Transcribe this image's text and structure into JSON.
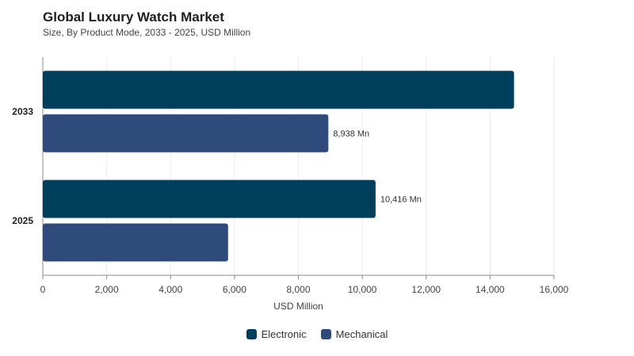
{
  "title": "Global Luxury Watch Market",
  "subtitle": "Size, By Product Mode, 2033 - 2025, USD Million",
  "colors": {
    "electronic": "#003f5c",
    "mechanical": "#2f4b7c"
  },
  "chart_data": {
    "type": "bar",
    "orientation": "horizontal",
    "title": "Global Luxury Watch Market",
    "subtitle": "Size, By Product Mode, 2033 - 2025, USD Million",
    "categories": [
      "2033",
      "2025"
    ],
    "series": [
      {
        "name": "Electronic",
        "values": [
          14750,
          10416
        ],
        "labels": [
          "",
          "10,416 Mn"
        ]
      },
      {
        "name": "Mechanical",
        "values": [
          8938,
          5800
        ],
        "labels": [
          "8,938 Mn",
          ""
        ]
      }
    ],
    "xlabel": "USD Million",
    "ylabel": "",
    "xlim": [
      0,
      16000
    ],
    "xticks": [
      "0",
      "2,000",
      "4,000",
      "6,000",
      "8,000",
      "10,000",
      "12,000",
      "14,000",
      "16,000"
    ],
    "grid": true,
    "legend_position": "bottom"
  }
}
